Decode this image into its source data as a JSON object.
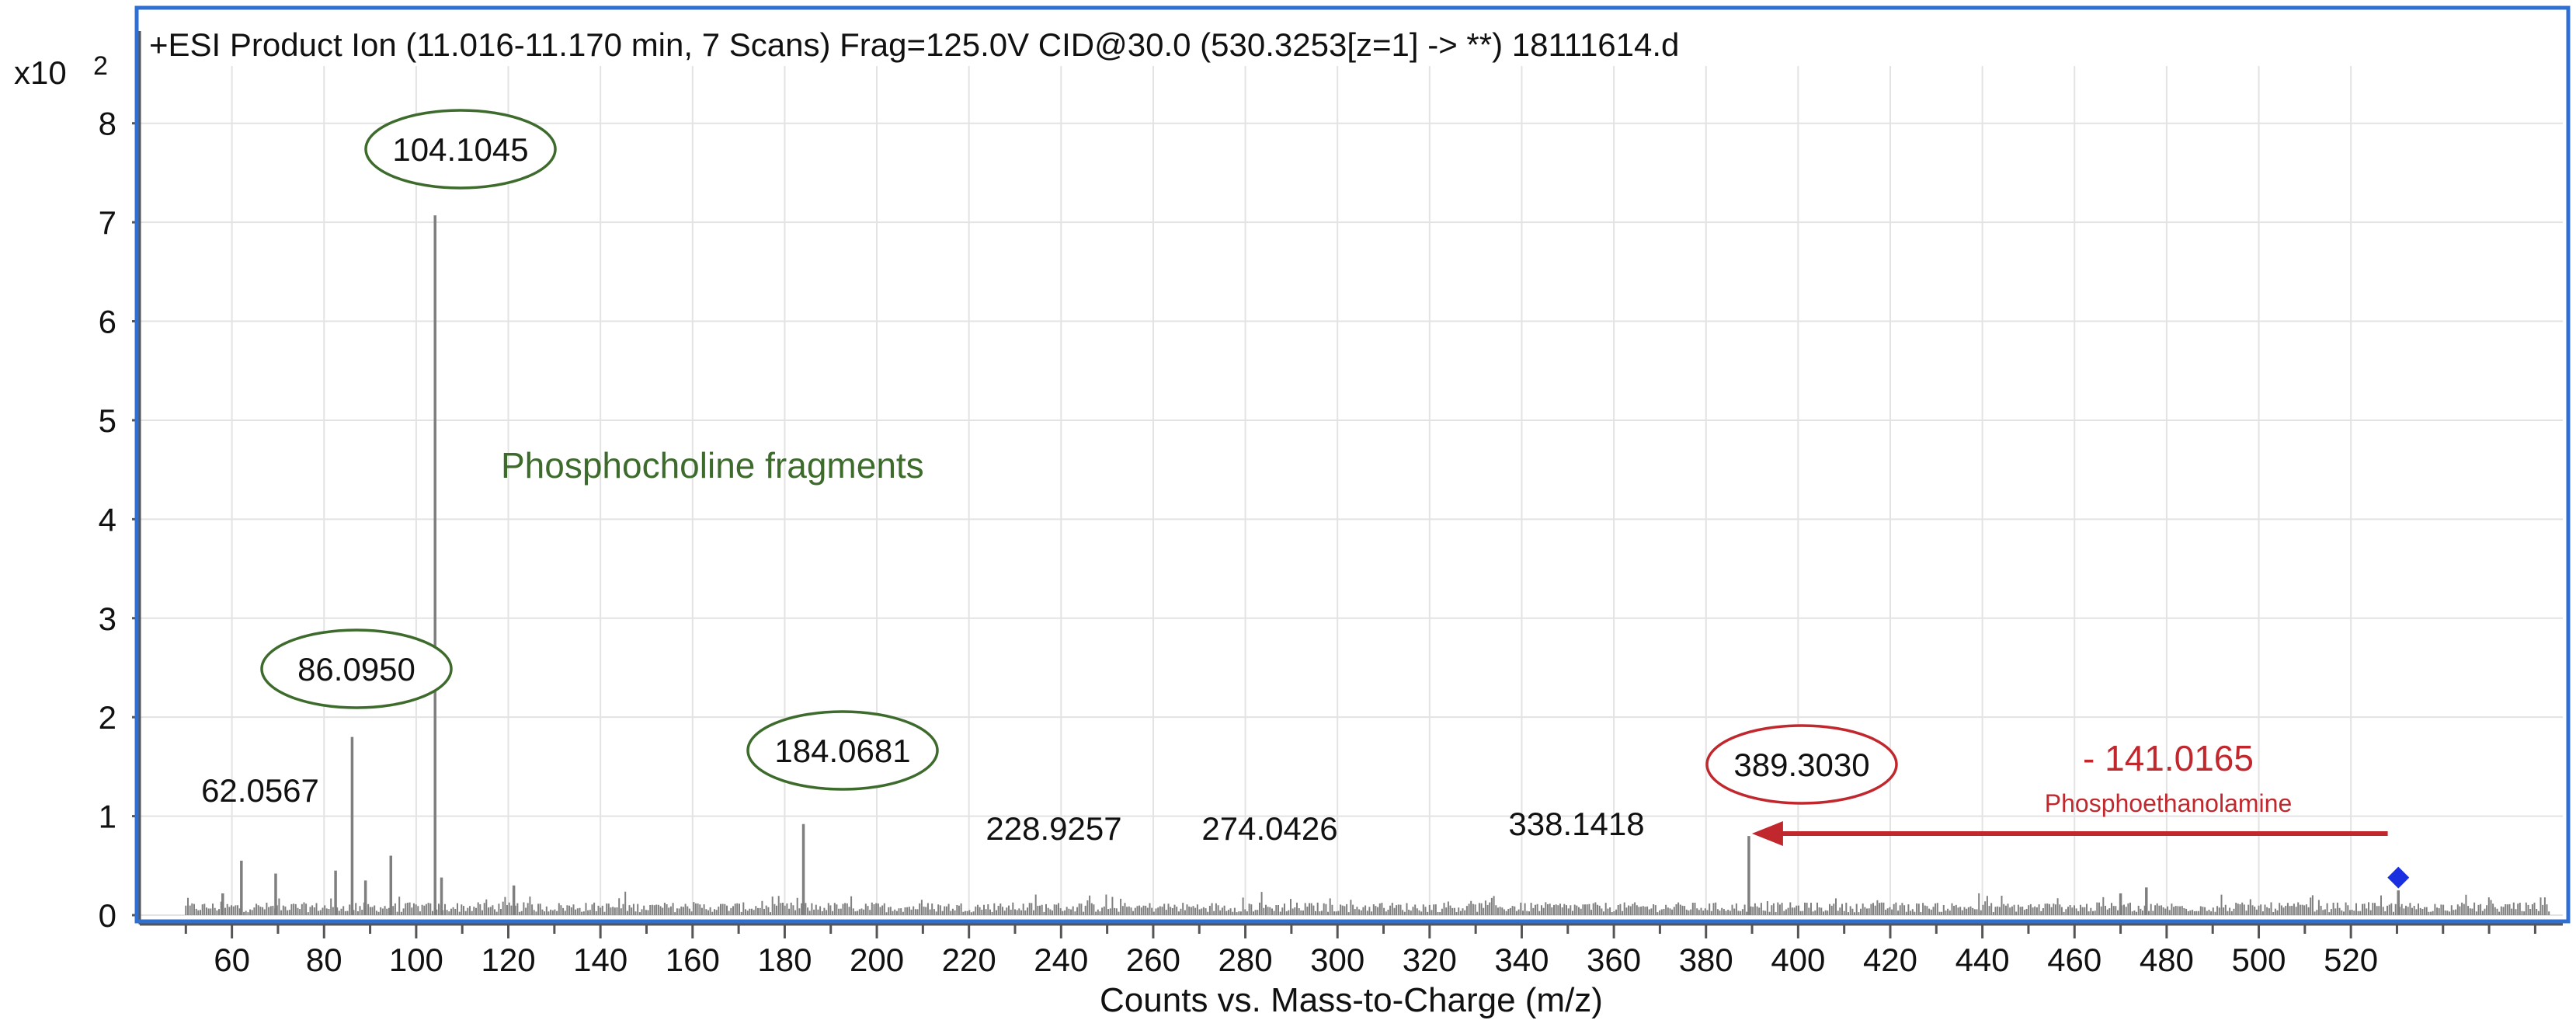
{
  "chart_data": {
    "type": "bar",
    "title": "+ESI Product Ion (11.016-11.170 min, 7 Scans) Frag=125.0V CID@30.0 (530.3253[z=1] -> **) 18111614.d",
    "xlabel": "Counts vs. Mass-to-Charge (m/z)",
    "y_scale_label": "x10",
    "y_scale_exp": "2",
    "xlim": [
      40,
      566
    ],
    "ylim": [
      0,
      8.5
    ],
    "x_ticks": [
      60,
      80,
      100,
      120,
      140,
      160,
      180,
      200,
      220,
      240,
      260,
      280,
      300,
      320,
      340,
      360,
      380,
      400,
      420,
      440,
      460,
      480,
      500,
      520
    ],
    "y_ticks": [
      0,
      1,
      2,
      3,
      4,
      5,
      6,
      7,
      8
    ],
    "grid": true,
    "peaks": [
      {
        "x": 104.1045,
        "y": 7.07
      },
      {
        "x": 86.095,
        "y": 1.8
      },
      {
        "x": 184.0681,
        "y": 0.92
      },
      {
        "x": 389.303,
        "y": 0.8
      },
      {
        "x": 62.0567,
        "y": 0.55
      },
      {
        "x": 69.5,
        "y": 0.42
      },
      {
        "x": 82.5,
        "y": 0.45
      },
      {
        "x": 94.5,
        "y": 0.6
      },
      {
        "x": 89.0,
        "y": 0.35
      },
      {
        "x": 105.5,
        "y": 0.38
      },
      {
        "x": 58.0,
        "y": 0.22
      },
      {
        "x": 121.2,
        "y": 0.3
      },
      {
        "x": 475.6,
        "y": 0.28
      },
      {
        "x": 470.0,
        "y": 0.22
      },
      {
        "x": 530.3,
        "y": 0.25
      }
    ],
    "peak_labels": [
      {
        "text": "104.1045",
        "x": 104.1045,
        "circled": true,
        "color": "#3d6b2c"
      },
      {
        "text": "86.0950",
        "x": 86.095,
        "circled": true,
        "color": "#3d6b2c"
      },
      {
        "text": "184.0681",
        "x": 184.0681,
        "circled": true,
        "color": "#3d6b2c"
      },
      {
        "text": "389.3030",
        "x": 389.303,
        "circled": true,
        "color": "#c0282d"
      },
      {
        "text": "62.0567",
        "x": 62.0567,
        "circled": false
      },
      {
        "text": "228.9257",
        "x": 228.9257,
        "circled": false
      },
      {
        "text": "274.0426",
        "x": 274.0426,
        "circled": false
      },
      {
        "text": "338.1418",
        "x": 338.1418,
        "circled": false
      }
    ],
    "annotations": {
      "group_label": "Phosphocholine fragments",
      "neutral_loss": "- 141.0165",
      "neutral_loss_name": "Phosphoethanolamine",
      "arrow_from_x": 528,
      "arrow_to_x": 389.303,
      "arrow_y": 0.8,
      "precursor_marker_x": 530.3,
      "precursor_marker_y": 0.38
    },
    "colors": {
      "frame": "#2e6fd1",
      "spectrum": "#7f7f7f",
      "green": "#3d6b2c",
      "red": "#c0282d",
      "marker": "#1a2fe0"
    }
  }
}
